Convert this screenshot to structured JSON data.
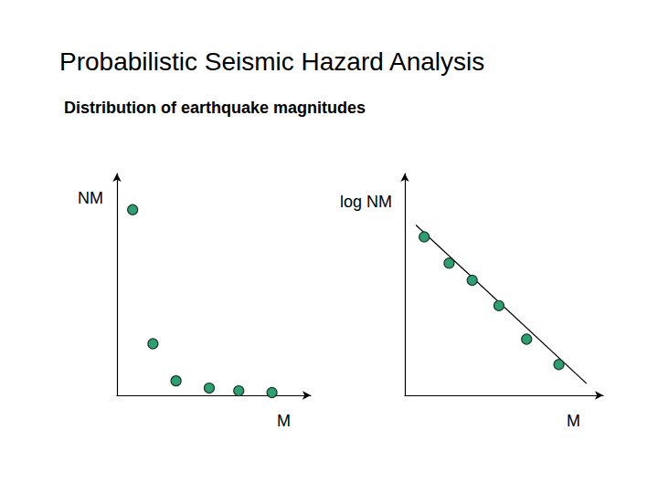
{
  "title": "Probabilistic Seismic Hazard Analysis",
  "subtitle": "Distribution of earthquake magnitudes",
  "chart_data": [
    {
      "type": "scatter",
      "x_label": "M",
      "y_label": "NM",
      "xlim": [
        0,
        210
      ],
      "ylim": [
        0,
        245
      ],
      "tick_labels": false,
      "grid": false,
      "series": [
        {
          "type": "scatter",
          "marker": "circle",
          "color": "#2f9e72",
          "x": [
            17,
            39,
            64,
            100,
            132,
            168
          ],
          "values": [
            205,
            57,
            16,
            8,
            5,
            3
          ]
        }
      ]
    },
    {
      "type": "scatter",
      "x_label": "M",
      "y_label": "log NM",
      "xlim": [
        0,
        215
      ],
      "ylim": [
        0,
        245
      ],
      "tick_labels": false,
      "grid": false,
      "series": [
        {
          "type": "line",
          "line_style": "solid",
          "color": "#000000",
          "x": [
            12,
            197
          ],
          "values": [
            188,
            13
          ]
        },
        {
          "type": "scatter",
          "marker": "circle",
          "color": "#2f9e72",
          "x": [
            21,
            48,
            73,
            102,
            132,
            167
          ],
          "values": [
            175,
            146,
            127,
            99,
            62,
            34
          ]
        }
      ]
    }
  ]
}
